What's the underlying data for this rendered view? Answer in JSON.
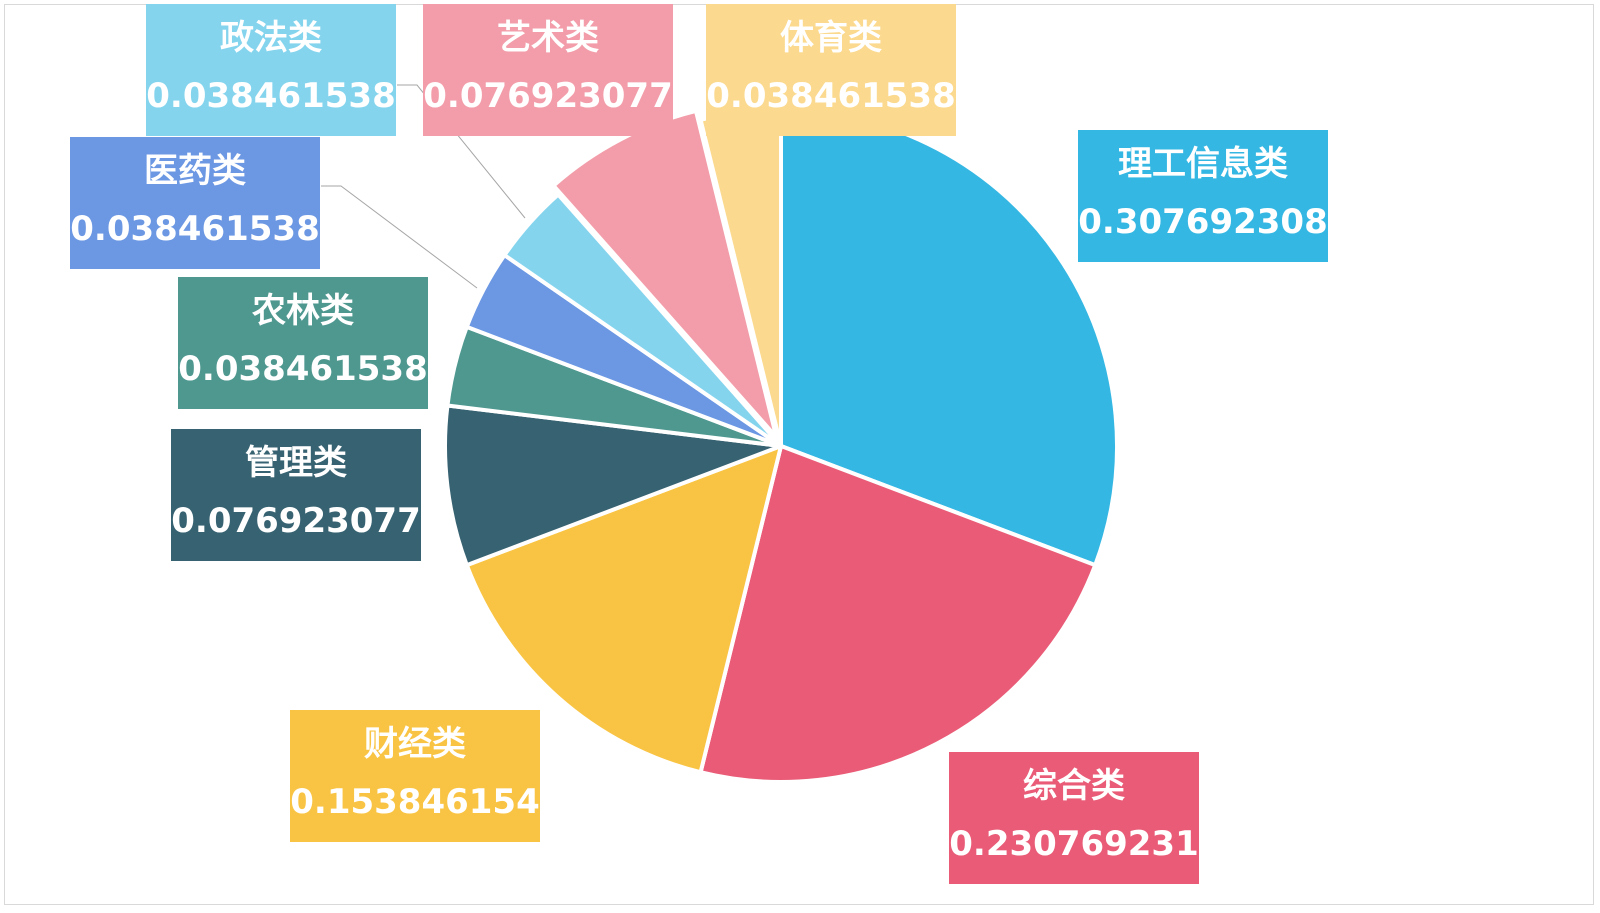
{
  "chart_data": {
    "type": "pie",
    "title": "",
    "slices": [
      {
        "label": "理工信息类",
        "value_text": "0.307692308",
        "value": 0.307692308,
        "color": "#35b7e3"
      },
      {
        "label": "综合类",
        "value_text": "0.230769231",
        "value": 0.230769231,
        "color": "#e95b76"
      },
      {
        "label": "财经类",
        "value_text": "0.153846154",
        "value": 0.153846154,
        "color": "#f9c443"
      },
      {
        "label": "管理类",
        "value_text": "0.076923077",
        "value": 0.076923077,
        "color": "#376271"
      },
      {
        "label": "农林类",
        "value_text": "0.038461538",
        "value": 0.038461538,
        "color": "#4f9890"
      },
      {
        "label": "医药类",
        "value_text": "0.038461538",
        "value": 0.038461538,
        "color": "#6b97e3"
      },
      {
        "label": "政法类",
        "value_text": "0.038461538",
        "value": 0.038461538,
        "color": "#85d4ee"
      },
      {
        "label": "艺术类",
        "value_text": "0.076923077",
        "value": 0.076923077,
        "color": "#f29da9"
      },
      {
        "label": "体育类",
        "value_text": "0.038461538",
        "value": 0.038461538,
        "color": "#fbd98e"
      }
    ]
  }
}
